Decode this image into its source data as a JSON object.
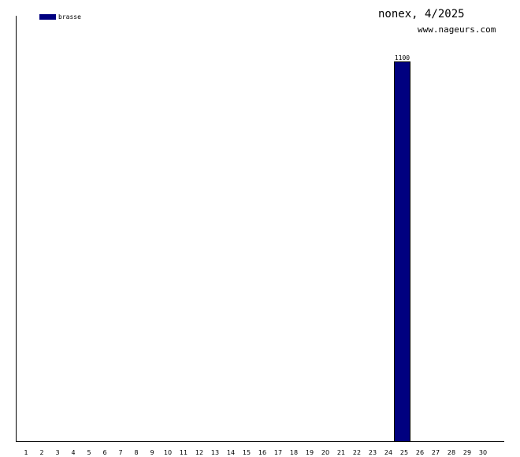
{
  "chart_data": {
    "type": "bar",
    "title": "nonex, 4/2025",
    "subtitle": "www.nageurs.com",
    "categories": [
      "1",
      "2",
      "3",
      "4",
      "5",
      "6",
      "7",
      "8",
      "9",
      "10",
      "11",
      "12",
      "13",
      "14",
      "15",
      "16",
      "17",
      "18",
      "19",
      "20",
      "21",
      "22",
      "23",
      "24",
      "25",
      "26",
      "27",
      "28",
      "29",
      "30"
    ],
    "series": [
      {
        "name": "brasse",
        "color": "#000080",
        "values": [
          0,
          0,
          0,
          0,
          0,
          0,
          0,
          0,
          0,
          0,
          0,
          0,
          0,
          0,
          0,
          0,
          0,
          0,
          0,
          0,
          0,
          0,
          0,
          0,
          1100,
          0,
          0,
          0,
          0,
          0
        ]
      }
    ],
    "data_labels": {
      "25": "1100"
    },
    "ylim": [
      0,
      1100
    ],
    "grid": false,
    "legend": "top-left"
  }
}
